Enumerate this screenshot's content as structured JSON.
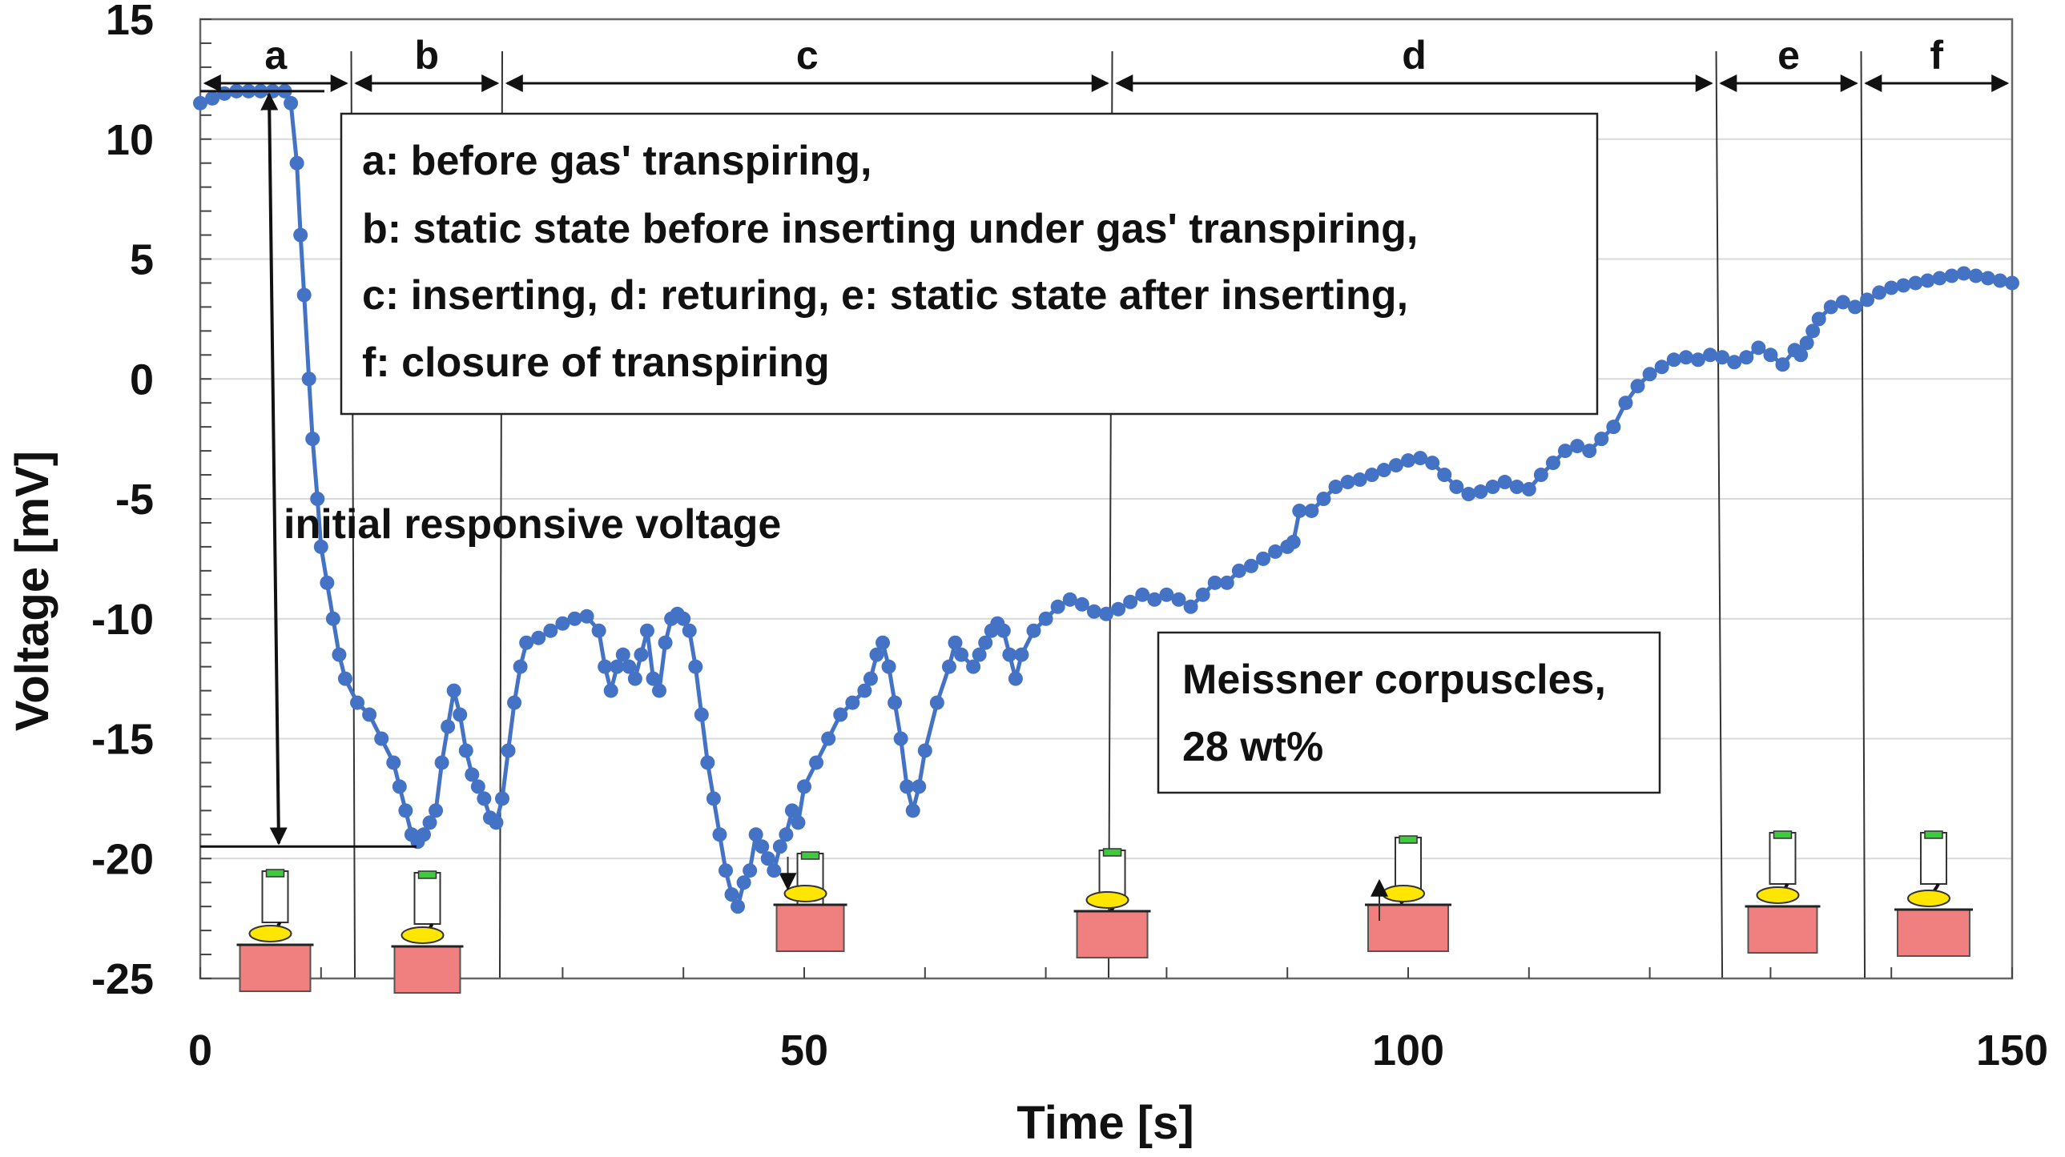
{
  "chart_data": {
    "type": "line",
    "xlabel": "Time   [s]",
    "ylabel": "Voltage  [mV]",
    "xlim": [
      0,
      150
    ],
    "ylim": [
      -25,
      15
    ],
    "xticks": [
      0,
      50,
      100,
      150
    ],
    "yticks": [
      15,
      10,
      5,
      0,
      -5,
      -10,
      -15,
      -20,
      -25
    ],
    "grid": "horizontal",
    "series_color": "#4472C4",
    "series": [
      {
        "points": [
          [
            0,
            11.5
          ],
          [
            1,
            11.7
          ],
          [
            2,
            11.9
          ],
          [
            3,
            12.0
          ],
          [
            4,
            12.0
          ],
          [
            5,
            12.0
          ],
          [
            6,
            12.0
          ],
          [
            7,
            12.0
          ],
          [
            7.5,
            11.5
          ],
          [
            8,
            9.0
          ],
          [
            8.3,
            6.0
          ],
          [
            8.6,
            3.5
          ],
          [
            9,
            0.0
          ],
          [
            9.3,
            -2.5
          ],
          [
            9.7,
            -5.0
          ],
          [
            10,
            -7.0
          ],
          [
            10.5,
            -8.5
          ],
          [
            11,
            -10.0
          ],
          [
            11.5,
            -11.5
          ],
          [
            12,
            -12.5
          ],
          [
            13,
            -13.5
          ],
          [
            14,
            -14.0
          ],
          [
            15,
            -15.0
          ],
          [
            16,
            -16.0
          ],
          [
            16.5,
            -17.0
          ],
          [
            17,
            -18.0
          ],
          [
            17.5,
            -19.0
          ],
          [
            18,
            -19.3
          ],
          [
            18.5,
            -19.0
          ],
          [
            19,
            -18.5
          ],
          [
            19.5,
            -18.0
          ],
          [
            20,
            -16.0
          ],
          [
            20.5,
            -14.5
          ],
          [
            21,
            -13.0
          ],
          [
            21.5,
            -14.0
          ],
          [
            22,
            -15.5
          ],
          [
            22.5,
            -16.5
          ],
          [
            23,
            -17.0
          ],
          [
            23.5,
            -17.5
          ],
          [
            24,
            -18.3
          ],
          [
            24.5,
            -18.5
          ],
          [
            25,
            -17.5
          ],
          [
            25.5,
            -15.5
          ],
          [
            26,
            -13.5
          ],
          [
            26.5,
            -12.0
          ],
          [
            27,
            -11.0
          ],
          [
            28,
            -10.8
          ],
          [
            29,
            -10.5
          ],
          [
            30,
            -10.2
          ],
          [
            31,
            -10.0
          ],
          [
            32,
            -9.9
          ],
          [
            33,
            -10.5
          ],
          [
            33.5,
            -12.0
          ],
          [
            34,
            -13.0
          ],
          [
            34.5,
            -12.0
          ],
          [
            35,
            -11.5
          ],
          [
            35.5,
            -12.0
          ],
          [
            36,
            -12.5
          ],
          [
            36.5,
            -11.5
          ],
          [
            37,
            -10.5
          ],
          [
            37.5,
            -12.5
          ],
          [
            38,
            -13.0
          ],
          [
            38.5,
            -11.0
          ],
          [
            39,
            -10.0
          ],
          [
            39.5,
            -9.8
          ],
          [
            40,
            -10.0
          ],
          [
            40.5,
            -10.5
          ],
          [
            41,
            -12.0
          ],
          [
            41.5,
            -14.0
          ],
          [
            42,
            -16.0
          ],
          [
            42.5,
            -17.5
          ],
          [
            43,
            -19.0
          ],
          [
            43.5,
            -20.5
          ],
          [
            44,
            -21.5
          ],
          [
            44.5,
            -22.0
          ],
          [
            45,
            -21.0
          ],
          [
            45.5,
            -20.5
          ],
          [
            46,
            -19.0
          ],
          [
            46.5,
            -19.5
          ],
          [
            47,
            -20.0
          ],
          [
            47.5,
            -20.5
          ],
          [
            48,
            -19.5
          ],
          [
            48.5,
            -19.0
          ],
          [
            49,
            -18.0
          ],
          [
            49.5,
            -18.5
          ],
          [
            50,
            -17.0
          ],
          [
            51,
            -16.0
          ],
          [
            52,
            -15.0
          ],
          [
            53,
            -14.0
          ],
          [
            54,
            -13.5
          ],
          [
            55,
            -13.0
          ],
          [
            55.5,
            -12.5
          ],
          [
            56,
            -11.5
          ],
          [
            56.5,
            -11.0
          ],
          [
            57,
            -12.0
          ],
          [
            57.5,
            -13.5
          ],
          [
            58,
            -15.0
          ],
          [
            58.5,
            -17.0
          ],
          [
            59,
            -18.0
          ],
          [
            59.5,
            -17.0
          ],
          [
            60,
            -15.5
          ],
          [
            61,
            -13.5
          ],
          [
            62,
            -12.0
          ],
          [
            62.5,
            -11.0
          ],
          [
            63,
            -11.5
          ],
          [
            64,
            -12.0
          ],
          [
            64.5,
            -11.5
          ],
          [
            65,
            -11.0
          ],
          [
            65.5,
            -10.5
          ],
          [
            66,
            -10.2
          ],
          [
            66.5,
            -10.5
          ],
          [
            67,
            -11.5
          ],
          [
            67.5,
            -12.5
          ],
          [
            68,
            -11.5
          ],
          [
            69,
            -10.5
          ],
          [
            70,
            -10.0
          ],
          [
            71,
            -9.5
          ],
          [
            72,
            -9.2
          ],
          [
            73,
            -9.4
          ],
          [
            74,
            -9.7
          ],
          [
            75,
            -9.8
          ],
          [
            76,
            -9.6
          ],
          [
            77,
            -9.3
          ],
          [
            78,
            -9.0
          ],
          [
            79,
            -9.2
          ],
          [
            80,
            -9.0
          ],
          [
            81,
            -9.2
          ],
          [
            82,
            -9.5
          ],
          [
            83,
            -9.0
          ],
          [
            84,
            -8.5
          ],
          [
            85,
            -8.5
          ],
          [
            86,
            -8.0
          ],
          [
            87,
            -7.8
          ],
          [
            88,
            -7.5
          ],
          [
            89,
            -7.2
          ],
          [
            90,
            -7.0
          ],
          [
            90.5,
            -6.8
          ],
          [
            91,
            -5.5
          ],
          [
            92,
            -5.5
          ],
          [
            93,
            -5.0
          ],
          [
            94,
            -4.5
          ],
          [
            95,
            -4.3
          ],
          [
            96,
            -4.2
          ],
          [
            97,
            -4.0
          ],
          [
            98,
            -3.8
          ],
          [
            99,
            -3.6
          ],
          [
            100,
            -3.4
          ],
          [
            101,
            -3.3
          ],
          [
            102,
            -3.5
          ],
          [
            103,
            -4.0
          ],
          [
            104,
            -4.5
          ],
          [
            105,
            -4.8
          ],
          [
            106,
            -4.7
          ],
          [
            107,
            -4.5
          ],
          [
            108,
            -4.3
          ],
          [
            109,
            -4.5
          ],
          [
            110,
            -4.6
          ],
          [
            111,
            -4.0
          ],
          [
            112,
            -3.5
          ],
          [
            113,
            -3.0
          ],
          [
            114,
            -2.8
          ],
          [
            115,
            -3.0
          ],
          [
            116,
            -2.5
          ],
          [
            117,
            -2.0
          ],
          [
            118,
            -1.0
          ],
          [
            119,
            -0.3
          ],
          [
            120,
            0.2
          ],
          [
            121,
            0.5
          ],
          [
            122,
            0.8
          ],
          [
            123,
            0.9
          ],
          [
            124,
            0.8
          ],
          [
            125,
            1.0
          ],
          [
            126,
            0.9
          ],
          [
            127,
            0.7
          ],
          [
            128,
            0.9
          ],
          [
            129,
            1.3
          ],
          [
            130,
            1.0
          ],
          [
            131,
            0.6
          ],
          [
            132,
            1.2
          ],
          [
            132.5,
            1.0
          ],
          [
            133,
            1.5
          ],
          [
            133.5,
            2.0
          ],
          [
            134,
            2.5
          ],
          [
            135,
            3.0
          ],
          [
            136,
            3.2
          ],
          [
            137,
            3.0
          ],
          [
            138,
            3.3
          ],
          [
            139,
            3.6
          ],
          [
            140,
            3.8
          ],
          [
            141,
            3.9
          ],
          [
            142,
            4.0
          ],
          [
            143,
            4.1
          ],
          [
            144,
            4.2
          ],
          [
            145,
            4.3
          ],
          [
            146,
            4.4
          ],
          [
            147,
            4.3
          ],
          [
            148,
            4.2
          ],
          [
            149,
            4.1
          ],
          [
            150,
            4.0
          ]
        ]
      }
    ],
    "phases": [
      {
        "label": "a",
        "start": 0,
        "end": 12.5
      },
      {
        "label": "b",
        "start": 12.5,
        "end": 25
      },
      {
        "label": "c",
        "start": 25,
        "end": 75.5
      },
      {
        "label": "d",
        "start": 75.5,
        "end": 125.5
      },
      {
        "label": "e",
        "start": 125.5,
        "end": 137.5
      },
      {
        "label": "f",
        "start": 137.5,
        "end": 150
      }
    ],
    "legend_box": {
      "lines": [
        "a: before gas' transpiring,",
        "b:  static state before inserting under gas' transpiring,",
        "c: inserting, d: returing, e: static state after inserting,",
        "f: closure of transpiring"
      ]
    },
    "annotations": {
      "responsive": "initial responsive voltage",
      "sample_line1": "Meissner corpuscles,",
      "sample_line2": "28 wt%"
    },
    "colors": {
      "pad_pink": "#F08080",
      "pad_yellow": "#FFE600",
      "sensor_green": "#3DCB3D",
      "grid": "#D9D9D9"
    }
  }
}
